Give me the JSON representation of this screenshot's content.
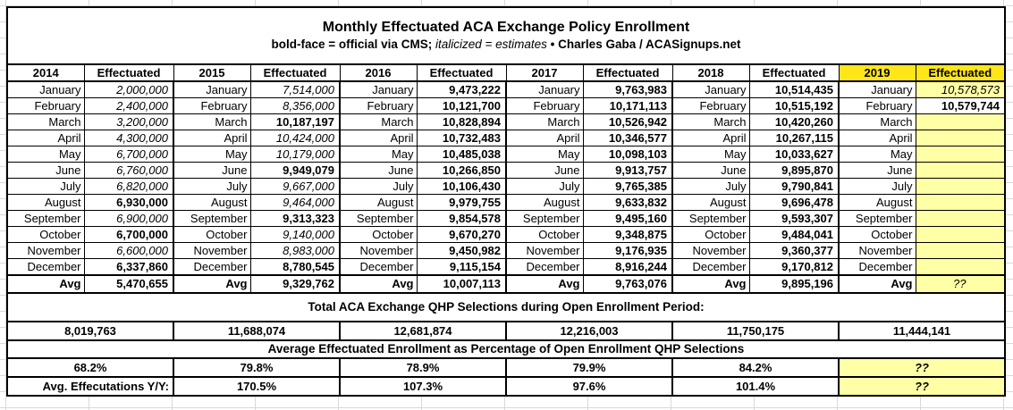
{
  "title": "Monthly Effectuated ACA Exchange Policy Enrollment",
  "subtitle": {
    "bold_part": "bold-face = official via CMS;",
    "italic_part": "italicized = estimates",
    "bullet": "•",
    "credit": "Charles Gaba / ACASignups.net"
  },
  "effectuated_label": "Effectuated",
  "avg_label": "Avg",
  "months": [
    "January",
    "February",
    "March",
    "April",
    "May",
    "June",
    "July",
    "August",
    "September",
    "October",
    "November",
    "December"
  ],
  "years": [
    {
      "year": "2014",
      "highlight": false,
      "values": [
        {
          "v": "2,000,000",
          "s": "i"
        },
        {
          "v": "2,400,000",
          "s": "i"
        },
        {
          "v": "3,200,000",
          "s": "i"
        },
        {
          "v": "4,300,000",
          "s": "i"
        },
        {
          "v": "6,700,000",
          "s": "i"
        },
        {
          "v": "6,760,000",
          "s": "i"
        },
        {
          "v": "6,820,000",
          "s": "i"
        },
        {
          "v": "6,930,000",
          "s": "b"
        },
        {
          "v": "6,900,000",
          "s": "i"
        },
        {
          "v": "6,700,000",
          "s": "b"
        },
        {
          "v": "6,600,000",
          "s": "i"
        },
        {
          "v": "6,337,860",
          "s": "b"
        }
      ],
      "avg": {
        "v": "5,470,655",
        "s": "b"
      }
    },
    {
      "year": "2015",
      "highlight": false,
      "values": [
        {
          "v": "7,514,000",
          "s": "i"
        },
        {
          "v": "8,356,000",
          "s": "i"
        },
        {
          "v": "10,187,197",
          "s": "b"
        },
        {
          "v": "10,424,000",
          "s": "i"
        },
        {
          "v": "10,179,000",
          "s": "i"
        },
        {
          "v": "9,949,079",
          "s": "b"
        },
        {
          "v": "9,667,000",
          "s": "i"
        },
        {
          "v": "9,464,000",
          "s": "i"
        },
        {
          "v": "9,313,323",
          "s": "b"
        },
        {
          "v": "9,140,000",
          "s": "i"
        },
        {
          "v": "8,983,000",
          "s": "i"
        },
        {
          "v": "8,780,545",
          "s": "b"
        }
      ],
      "avg": {
        "v": "9,329,762",
        "s": "b"
      }
    },
    {
      "year": "2016",
      "highlight": false,
      "values": [
        {
          "v": "9,473,222",
          "s": "b"
        },
        {
          "v": "10,121,700",
          "s": "b"
        },
        {
          "v": "10,828,894",
          "s": "b"
        },
        {
          "v": "10,732,483",
          "s": "b"
        },
        {
          "v": "10,485,038",
          "s": "b"
        },
        {
          "v": "10,266,850",
          "s": "b"
        },
        {
          "v": "10,106,430",
          "s": "b"
        },
        {
          "v": "9,979,755",
          "s": "b"
        },
        {
          "v": "9,854,578",
          "s": "b"
        },
        {
          "v": "9,670,270",
          "s": "b"
        },
        {
          "v": "9,450,982",
          "s": "b"
        },
        {
          "v": "9,115,154",
          "s": "b"
        }
      ],
      "avg": {
        "v": "10,007,113",
        "s": "b"
      }
    },
    {
      "year": "2017",
      "highlight": false,
      "values": [
        {
          "v": "9,763,983",
          "s": "b"
        },
        {
          "v": "10,171,113",
          "s": "b"
        },
        {
          "v": "10,526,942",
          "s": "b"
        },
        {
          "v": "10,346,577",
          "s": "b"
        },
        {
          "v": "10,098,103",
          "s": "b"
        },
        {
          "v": "9,913,757",
          "s": "b"
        },
        {
          "v": "9,765,385",
          "s": "b"
        },
        {
          "v": "9,633,832",
          "s": "b"
        },
        {
          "v": "9,495,160",
          "s": "b"
        },
        {
          "v": "9,348,875",
          "s": "b"
        },
        {
          "v": "9,176,935",
          "s": "b"
        },
        {
          "v": "8,916,244",
          "s": "b"
        }
      ],
      "avg": {
        "v": "9,763,076",
        "s": "b"
      }
    },
    {
      "year": "2018",
      "highlight": false,
      "values": [
        {
          "v": "10,514,435",
          "s": "b"
        },
        {
          "v": "10,515,192",
          "s": "b"
        },
        {
          "v": "10,420,260",
          "s": "b"
        },
        {
          "v": "10,267,115",
          "s": "b"
        },
        {
          "v": "10,033,627",
          "s": "b"
        },
        {
          "v": "9,895,870",
          "s": "b"
        },
        {
          "v": "9,790,841",
          "s": "b"
        },
        {
          "v": "9,696,478",
          "s": "b"
        },
        {
          "v": "9,593,307",
          "s": "b"
        },
        {
          "v": "9,484,041",
          "s": "b"
        },
        {
          "v": "9,360,377",
          "s": "b"
        },
        {
          "v": "9,170,812",
          "s": "b"
        }
      ],
      "avg": {
        "v": "9,895,196",
        "s": "b"
      }
    },
    {
      "year": "2019",
      "highlight": true,
      "values": [
        {
          "v": "10,578,573",
          "s": "i",
          "bg": "pale"
        },
        {
          "v": "10,579,744",
          "s": "b"
        },
        {
          "v": "",
          "s": "",
          "bg": "pale"
        },
        {
          "v": "",
          "s": "",
          "bg": "pale"
        },
        {
          "v": "",
          "s": "",
          "bg": "pale"
        },
        {
          "v": "",
          "s": "",
          "bg": "pale"
        },
        {
          "v": "",
          "s": "",
          "bg": "pale"
        },
        {
          "v": "",
          "s": "",
          "bg": "pale"
        },
        {
          "v": "",
          "s": "",
          "bg": "pale"
        },
        {
          "v": "",
          "s": "",
          "bg": "pale"
        },
        {
          "v": "",
          "s": "",
          "bg": "pale"
        },
        {
          "v": "",
          "s": "",
          "bg": "pale"
        }
      ],
      "avg": {
        "v": "??",
        "s": "i",
        "bg": "pale"
      }
    }
  ],
  "qhp": {
    "header": "Total ACA Exchange QHP Selections during Open Enrollment Period:",
    "totals": [
      "8,019,763",
      "11,688,074",
      "12,681,874",
      "12,216,003",
      "11,750,175",
      "11,444,141"
    ]
  },
  "pct": {
    "header": "Average Effectuated Enrollment as Percentage of Open Enrollment QHP Selections",
    "values": [
      {
        "v": "68.2%"
      },
      {
        "v": "79.8%"
      },
      {
        "v": "78.9%"
      },
      {
        "v": "79.9%"
      },
      {
        "v": "84.2%"
      },
      {
        "v": "??",
        "s": "i",
        "bg": "pale"
      }
    ]
  },
  "yoy": {
    "label": "Avg. Effecutations Y/Y:",
    "values": [
      {
        "v": "170.5%"
      },
      {
        "v": "107.3%"
      },
      {
        "v": "97.6%"
      },
      {
        "v": "101.4%"
      },
      {
        "v": "??",
        "s": "i",
        "bg": "pale"
      }
    ]
  },
  "colors": {
    "header_highlight": "#ffe619",
    "cell_highlight": "#ffffa6",
    "border": "#000000",
    "grid_line": "#d9d9d9"
  }
}
